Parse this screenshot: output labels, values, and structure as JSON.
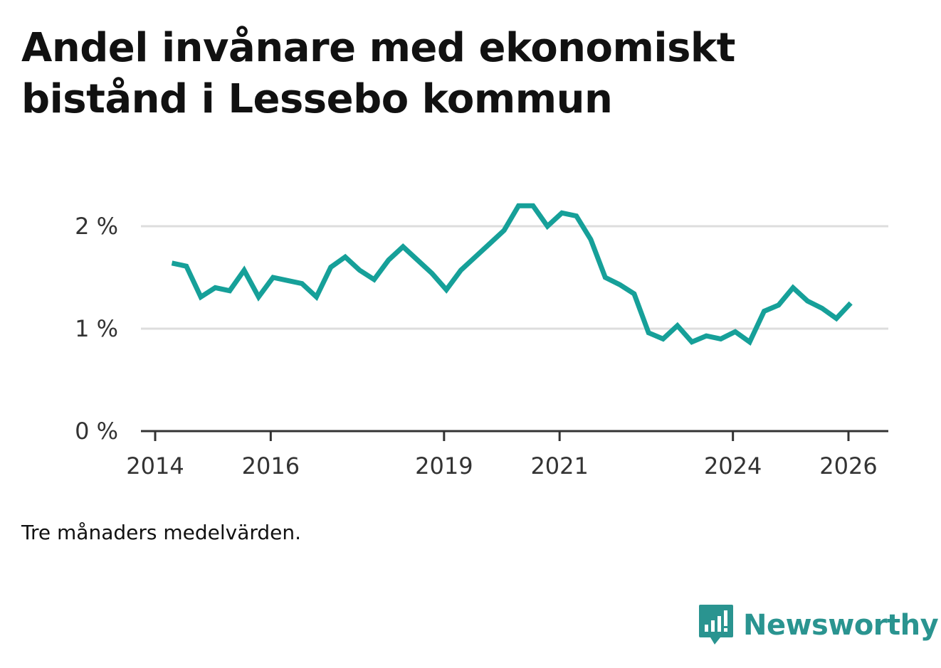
{
  "title": "Andel invånare med ekonomiskt bistånd i Lessebo kommun",
  "note": "Tre månaders medelvärden.",
  "brand": {
    "name": "Newsworthy",
    "icon": "newsworthy-logo-icon",
    "color": "#2a9490"
  },
  "colors": {
    "line": "#16a099",
    "grid": "#dddddd",
    "axis": "#333333"
  },
  "chart_data": {
    "type": "line",
    "title": "Andel invånare med ekonomiskt bistånd i Lessebo kommun",
    "xlabel": "",
    "ylabel": "",
    "xlim": [
      2014,
      2026.5
    ],
    "ylim": [
      0,
      2.2
    ],
    "x_ticks": [
      2014,
      2016,
      2019,
      2021,
      2024,
      2026
    ],
    "x_tick_labels": [
      "2014",
      "2016",
      "2019",
      "2021",
      "2024",
      "2026"
    ],
    "y_ticks": [
      0,
      1,
      2
    ],
    "y_tick_labels": [
      "0 %",
      "1 %",
      "2 %"
    ],
    "grid": true,
    "series": [
      {
        "name": "Andel invånare med ekonomiskt bistånd",
        "x": [
          2014.29,
          2014.54,
          2014.79,
          2015.04,
          2015.29,
          2015.54,
          2015.79,
          2016.04,
          2016.29,
          2016.54,
          2016.79,
          2017.04,
          2017.29,
          2017.54,
          2017.79,
          2018.04,
          2018.29,
          2018.54,
          2018.79,
          2019.04,
          2019.29,
          2019.54,
          2019.79,
          2020.04,
          2020.29,
          2020.54,
          2020.79,
          2021.04,
          2021.29,
          2021.54,
          2021.79,
          2022.04,
          2022.29,
          2022.54,
          2022.79,
          2023.04,
          2023.29,
          2023.54,
          2023.79,
          2024.04,
          2024.29,
          2024.54,
          2024.79,
          2025.04,
          2025.29,
          2025.54,
          2025.79,
          2026.04
        ],
        "values": [
          1.64,
          1.61,
          1.31,
          1.4,
          1.37,
          1.57,
          1.31,
          1.5,
          1.47,
          1.44,
          1.31,
          1.6,
          1.7,
          1.57,
          1.48,
          1.67,
          1.8,
          1.67,
          1.54,
          1.38,
          1.57,
          1.7,
          1.83,
          1.96,
          2.2,
          2.2,
          2.0,
          2.13,
          2.1,
          1.87,
          1.5,
          1.43,
          1.34,
          0.96,
          0.9,
          1.03,
          0.87,
          0.93,
          0.9,
          0.97,
          0.87,
          1.17,
          1.23,
          1.4,
          1.27,
          1.2,
          1.1,
          1.25
        ]
      }
    ]
  }
}
